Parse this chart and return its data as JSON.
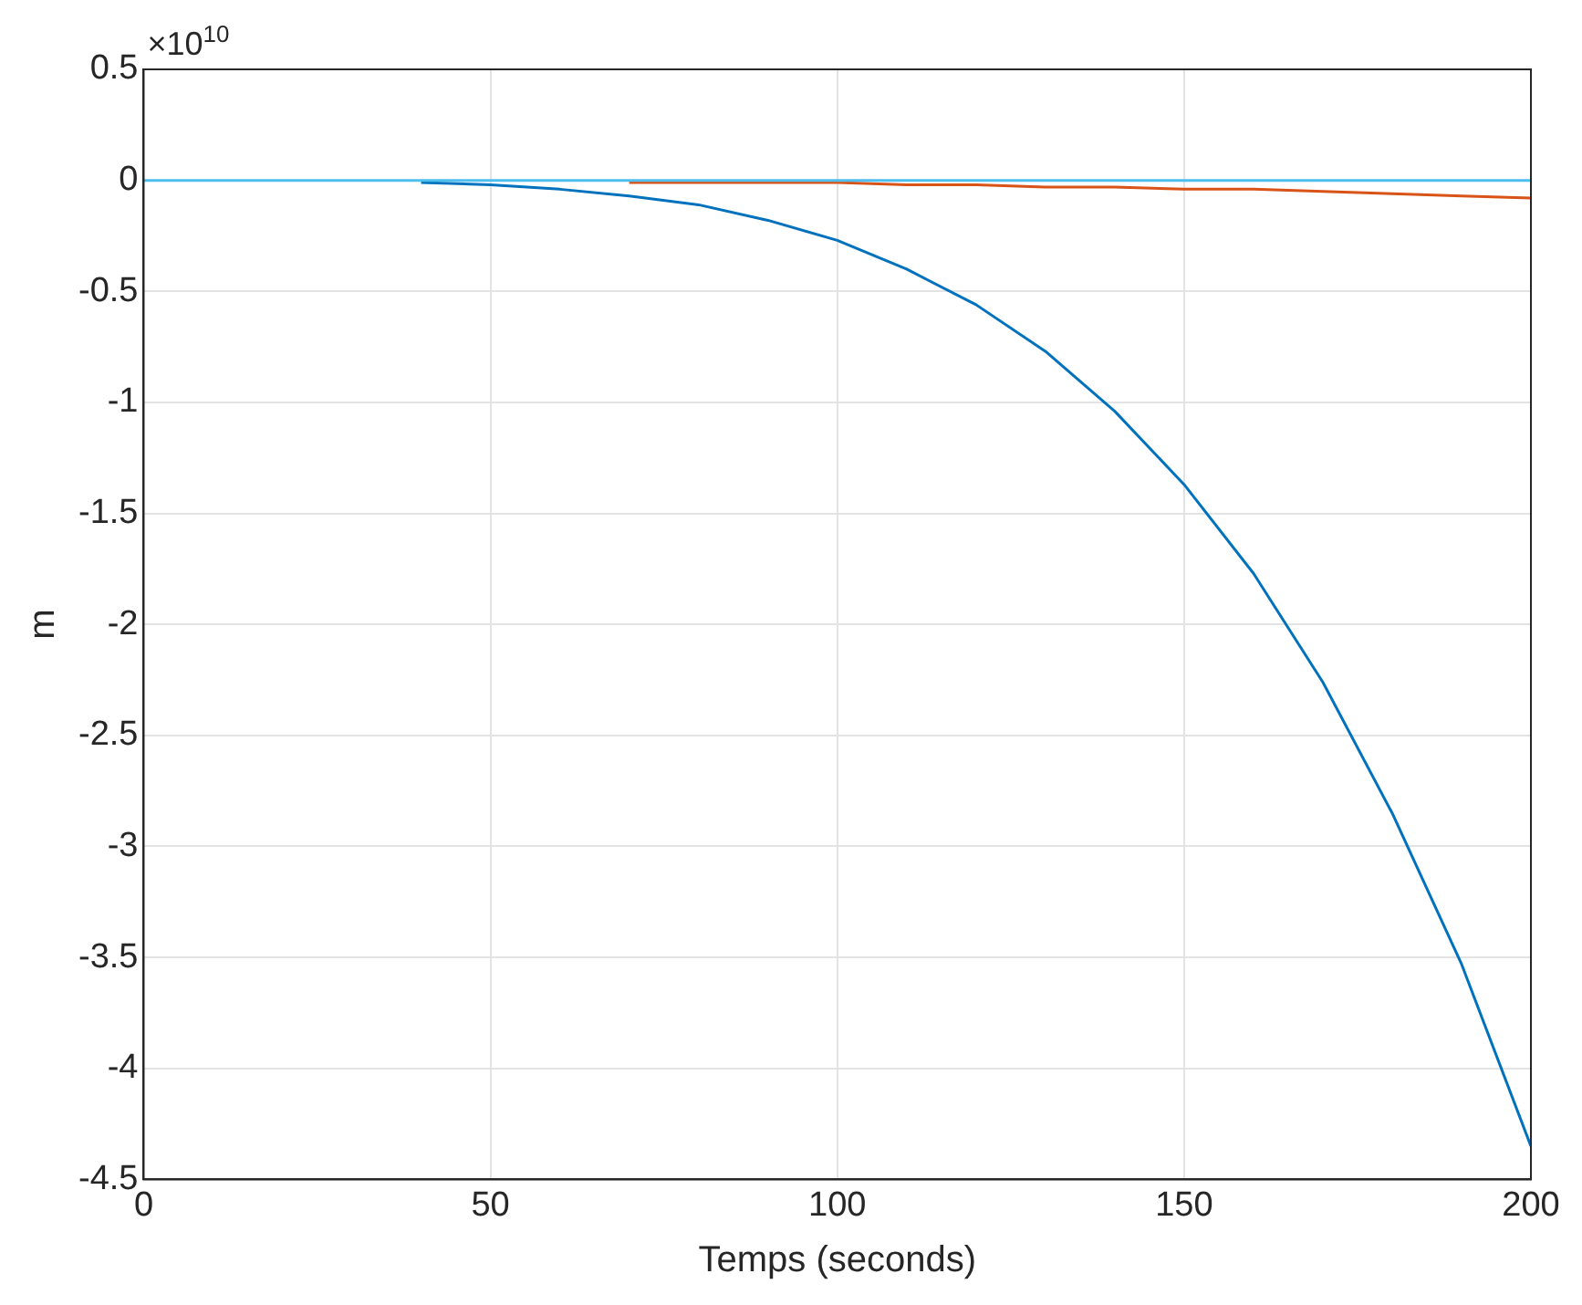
{
  "chart_data": {
    "type": "line",
    "xlabel": "Temps (seconds)",
    "ylabel": "m",
    "annotations": [
      "×10$^{10}$"
    ],
    "x": [
      0,
      10,
      20,
      30,
      40,
      50,
      60,
      70,
      80,
      90,
      100,
      110,
      120,
      130,
      140,
      150,
      160,
      170,
      180,
      190,
      200
    ],
    "series": [
      {
        "color": "#0072bd",
        "values": [
          null,
          null,
          null,
          null,
          -0.01,
          -0.02,
          -0.04,
          -0.07,
          -0.11,
          -0.18,
          -0.27,
          -0.4,
          -0.56,
          -0.77,
          -1.04,
          -1.37,
          -1.77,
          -2.26,
          -2.85,
          -3.53,
          -4.35
        ]
      },
      {
        "color": "#d95319",
        "values": [
          null,
          null,
          null,
          null,
          null,
          null,
          null,
          -0.01,
          -0.01,
          -0.01,
          -0.01,
          -0.02,
          -0.02,
          -0.03,
          -0.03,
          -0.04,
          -0.04,
          -0.05,
          -0.06,
          -0.07,
          -0.08
        ]
      },
      {
        "color": "#4dbeee",
        "values": [
          0,
          0,
          0,
          0,
          0,
          0,
          0,
          0,
          0,
          0,
          0,
          0,
          0,
          0,
          0,
          0,
          0,
          0,
          0,
          0,
          0
        ]
      }
    ],
    "xlim": [
      0,
      200
    ],
    "xticks": [
      0,
      50,
      100,
      150,
      200
    ],
    "ylim": [
      -4.5,
      0.5
    ],
    "yticks": [
      0.5,
      0,
      -0.5,
      -1,
      -1.5,
      -2,
      -2.5,
      -3,
      -3.5,
      -4,
      -4.5
    ],
    "grid": true,
    "legend": false,
    "line_style": "solid",
    "marker": "none"
  }
}
